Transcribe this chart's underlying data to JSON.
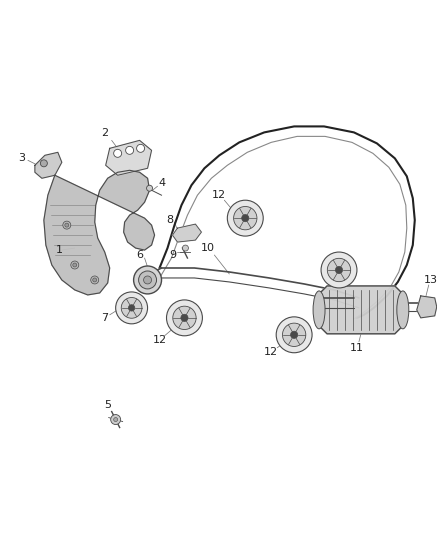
{
  "bg_color": "#ffffff",
  "lc": "#4a4a4a",
  "lc_dark": "#222222",
  "lc_light": "#888888",
  "figsize": [
    4.38,
    5.33
  ],
  "dpi": 100
}
